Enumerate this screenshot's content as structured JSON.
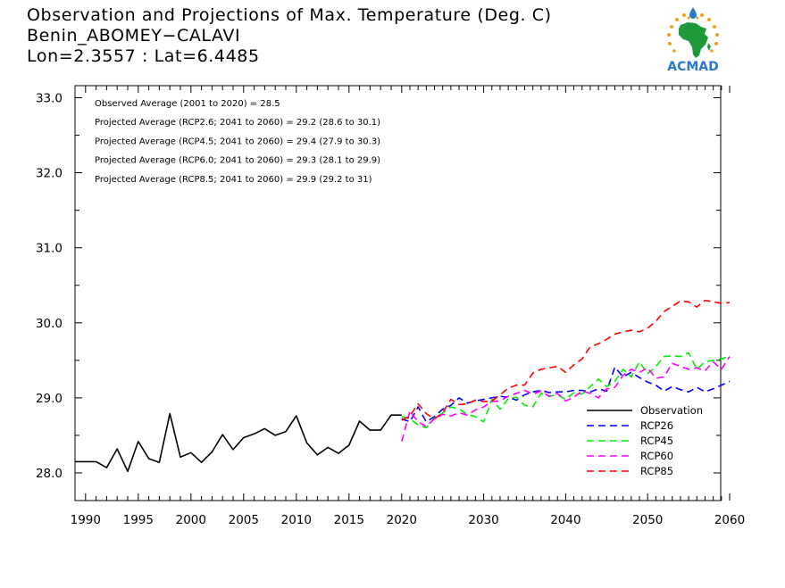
{
  "header": {
    "title": "Observation and Projections of Max. Temperature (Deg. C)",
    "location": "Benin_ABOMEY−CALAVI",
    "coords": "Lon=2.3557 : Lat=6.4485"
  },
  "logo": {
    "text": "ACMAD",
    "icon": "acmad-africa-logo"
  },
  "chart_data": {
    "type": "line",
    "title": "Observation and Projections of Max. Temperature (Deg. C)",
    "xlim": [
      1989,
      2060
    ],
    "ylim": [
      27.65,
      33.0
    ],
    "grid": false,
    "legend_position": "bottom-right",
    "y_ticks": [
      "28.0",
      "29.0",
      "30.0",
      "31.0",
      "32.0",
      "33.0"
    ],
    "y_tick_values": [
      28,
      29,
      30,
      31,
      32,
      33
    ],
    "x_ticks": [
      "1990",
      "1995",
      "2000",
      "2005",
      "2010",
      "2015",
      "2020",
      "2030",
      "2040",
      "2050",
      "2060"
    ],
    "x_tick_values": [
      1990,
      1995,
      2000,
      2005,
      2010,
      2015,
      2020,
      2030,
      2040,
      2050,
      2060
    ],
    "annotations": [
      "Observed Average (2001 to 2020) = 28.5",
      "Projected Average (RCP2.6; 2041 to 2060) = 29.2 (28.6 to 30.1)",
      "Projected Average (RCP4.5; 2041 to 2060) = 29.4 (27.9 to 30.3)",
      "Projected Average (RCP6.0; 2041 to 2060) = 29.3 (28.1 to 29.9)",
      "Projected Average (RCP8.5; 2041 to 2060) = 29.9 (29.2 to 31)"
    ],
    "series": [
      {
        "name": "Observation",
        "color": "#000000",
        "dashed": false,
        "x": [
          1989,
          1990,
          1991,
          1992,
          1993,
          1994,
          1995,
          1996,
          1997,
          1998,
          1999,
          2000,
          2001,
          2002,
          2003,
          2004,
          2005,
          2006,
          2007,
          2008,
          2009,
          2010,
          2011,
          2012,
          2013,
          2014,
          2015,
          2016,
          2017,
          2018,
          2019,
          2020
        ],
        "values": [
          28.15,
          28.15,
          28.15,
          28.07,
          28.32,
          28.02,
          28.42,
          28.19,
          28.14,
          28.79,
          28.21,
          28.27,
          28.14,
          28.28,
          28.51,
          28.31,
          28.47,
          28.52,
          28.59,
          28.5,
          28.55,
          28.76,
          28.4,
          28.24,
          28.34,
          28.26,
          28.37,
          28.69,
          28.57,
          28.57,
          28.77,
          28.77
        ]
      },
      {
        "name": "RCP26",
        "color": "#0000ff",
        "dashed": true,
        "x": [
          2020,
          2021,
          2022,
          2023,
          2024,
          2025,
          2026,
          2027,
          2028,
          2029,
          2030,
          2031,
          2032,
          2033,
          2034,
          2035,
          2036,
          2037,
          2038,
          2039,
          2040,
          2041,
          2042,
          2043,
          2044,
          2045,
          2046,
          2047,
          2048,
          2049,
          2050,
          2051,
          2052,
          2053,
          2054,
          2055,
          2056,
          2057,
          2058,
          2059,
          2060
        ],
        "values": [
          28.72,
          28.68,
          28.88,
          28.68,
          28.75,
          28.85,
          28.9,
          29.0,
          28.93,
          28.96,
          28.98,
          29.0,
          29.02,
          29.01,
          28.97,
          29.04,
          29.08,
          29.1,
          29.07,
          29.08,
          29.08,
          29.1,
          29.1,
          29.08,
          29.12,
          29.09,
          29.41,
          29.28,
          29.34,
          29.27,
          29.21,
          29.17,
          29.09,
          29.15,
          29.11,
          29.08,
          29.14,
          29.08,
          29.12,
          29.17,
          29.22
        ]
      },
      {
        "name": "RCP45",
        "color": "#00ee00",
        "dashed": true,
        "x": [
          2020,
          2021,
          2022,
          2023,
          2024,
          2025,
          2026,
          2027,
          2028,
          2029,
          2030,
          2031,
          2032,
          2033,
          2034,
          2035,
          2036,
          2037,
          2038,
          2039,
          2040,
          2041,
          2042,
          2043,
          2044,
          2045,
          2046,
          2047,
          2048,
          2049,
          2050,
          2051,
          2052,
          2053,
          2054,
          2055,
          2056,
          2057,
          2058,
          2059,
          2060
        ],
        "values": [
          28.75,
          28.72,
          28.64,
          28.6,
          28.73,
          28.8,
          28.88,
          28.85,
          28.78,
          28.75,
          28.68,
          28.98,
          28.85,
          28.99,
          29.01,
          28.9,
          28.88,
          29.06,
          29.02,
          29.04,
          28.98,
          29.07,
          29.05,
          29.15,
          29.25,
          29.15,
          29.22,
          29.38,
          29.28,
          29.48,
          29.32,
          29.42,
          29.55,
          29.56,
          29.55,
          29.6,
          29.38,
          29.48,
          29.5,
          29.52,
          29.55
        ]
      },
      {
        "name": "RCP60",
        "color": "#ff00ff",
        "dashed": true,
        "x": [
          2020,
          2021,
          2022,
          2023,
          2024,
          2025,
          2026,
          2027,
          2028,
          2029,
          2030,
          2031,
          2032,
          2033,
          2034,
          2035,
          2036,
          2037,
          2038,
          2039,
          2040,
          2041,
          2042,
          2043,
          2044,
          2045,
          2046,
          2047,
          2048,
          2049,
          2050,
          2051,
          2052,
          2053,
          2054,
          2055,
          2056,
          2057,
          2058,
          2059,
          2060
        ],
        "values": [
          28.42,
          28.82,
          28.68,
          28.62,
          28.72,
          28.78,
          28.76,
          28.8,
          28.77,
          28.84,
          28.88,
          28.95,
          28.96,
          29.02,
          29.06,
          29.1,
          29.05,
          29.09,
          29.02,
          29.06,
          28.96,
          29.01,
          29.09,
          29.06,
          29.0,
          29.12,
          29.14,
          29.3,
          29.38,
          29.34,
          29.4,
          29.26,
          29.28,
          29.46,
          29.42,
          29.38,
          29.4,
          29.36,
          29.48,
          29.38,
          29.55
        ]
      },
      {
        "name": "RCP85",
        "color": "#ff0000",
        "dashed": true,
        "x": [
          2020,
          2021,
          2022,
          2023,
          2024,
          2025,
          2026,
          2027,
          2028,
          2029,
          2030,
          2031,
          2032,
          2033,
          2034,
          2035,
          2036,
          2037,
          2038,
          2039,
          2040,
          2041,
          2042,
          2043,
          2044,
          2045,
          2046,
          2047,
          2048,
          2049,
          2050,
          2051,
          2052,
          2053,
          2054,
          2055,
          2056,
          2057,
          2058,
          2059,
          2060
        ],
        "values": [
          28.7,
          28.76,
          28.92,
          28.79,
          28.72,
          28.8,
          28.98,
          28.91,
          28.92,
          28.97,
          28.95,
          28.96,
          29.04,
          29.13,
          29.17,
          29.17,
          29.33,
          29.38,
          29.4,
          29.42,
          29.34,
          29.44,
          29.52,
          29.68,
          29.72,
          29.78,
          29.85,
          29.88,
          29.9,
          29.88,
          29.93,
          30.02,
          30.15,
          30.22,
          30.29,
          30.28,
          30.21,
          30.3,
          30.28,
          30.26,
          30.27
        ]
      }
    ]
  }
}
